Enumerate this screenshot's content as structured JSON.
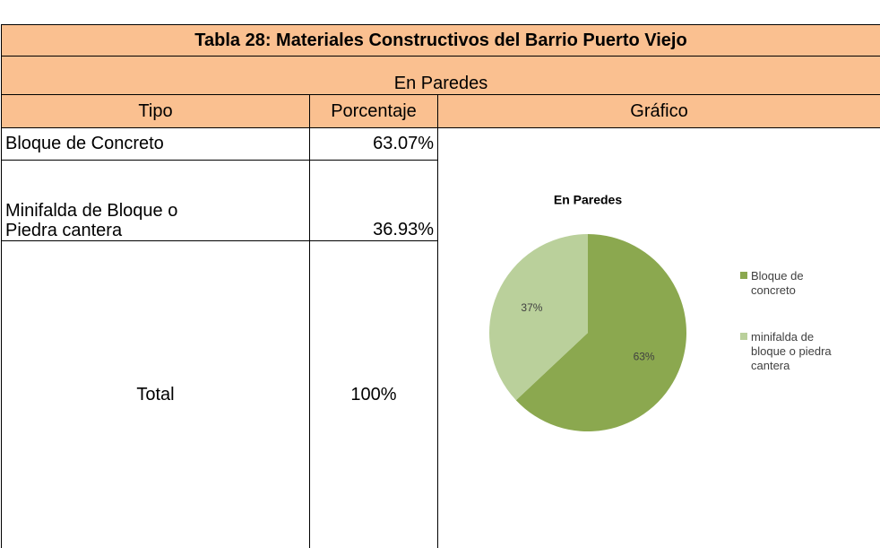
{
  "table": {
    "title": "Tabla 28: Materiales Constructivos del Barrio Puerto Viejo",
    "subtitle": "En Paredes",
    "headers": [
      "Tipo",
      "Porcentaje",
      "Gráfico"
    ],
    "rows": [
      [
        [
          "Bloque de Concreto"
        ],
        "63.07%"
      ],
      [
        [
          "Minifalda de Bloque o",
          "Piedra cantera"
        ],
        "36.93%"
      ],
      [
        [
          "Total"
        ],
        "100%"
      ]
    ]
  },
  "chart_data": {
    "type": "pie",
    "title": "En Paredes",
    "categories": [
      "Bloque de concreto",
      "minifalda de bloque o piedra cantera"
    ],
    "values": [
      63,
      37
    ],
    "value_labels": [
      "63%",
      "37%"
    ],
    "colors": [
      "#8ba84f",
      "#bad09b"
    ],
    "legend": "right"
  }
}
